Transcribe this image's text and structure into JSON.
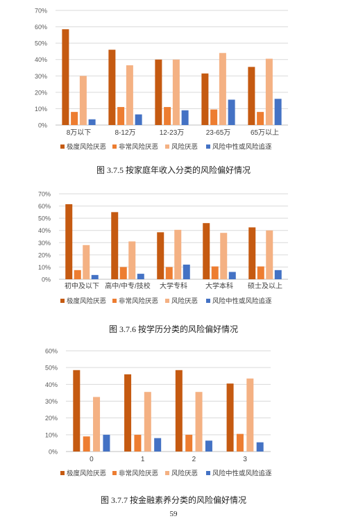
{
  "figures": [
    {
      "caption": "图 3.7.5  按家庭年收入分类的风险偏好情况",
      "chart_data": {
        "type": "bar",
        "categories": [
          "8万以下",
          "8-12万",
          "12-23万",
          "23-65万",
          "65万以上"
        ],
        "series": [
          {
            "name": "极度风险厌恶",
            "values": [
              58.5,
              46,
              40,
              31.5,
              35.5
            ]
          },
          {
            "name": "非常风险厌恶",
            "values": [
              8,
              11,
              11,
              9.5,
              8
            ]
          },
          {
            "name": "风险厌恶",
            "values": [
              30,
              36.5,
              40,
              44,
              40.5
            ]
          },
          {
            "name": "风险中性或风险追逐",
            "values": [
              3.5,
              6.5,
              9,
              15.5,
              16
            ]
          }
        ],
        "yticks": [
          "0%",
          "10%",
          "20%",
          "30%",
          "40%",
          "50%",
          "60%",
          "70%"
        ],
        "ylim": [
          0,
          70
        ],
        "grid": true,
        "legend_position": "bottom",
        "colors": [
          "#C55A11",
          "#ED7D31",
          "#F4B183",
          "#4472C4"
        ]
      }
    },
    {
      "caption": "图 3.7.6  按学历分类的风险偏好情况",
      "chart_data": {
        "type": "bar",
        "categories": [
          "初中及以下",
          "高中/中专/技校",
          "大学专科",
          "大学本科",
          "硕士及以上"
        ],
        "series": [
          {
            "name": "极度风险厌恶",
            "values": [
              61.5,
              55,
              38.5,
              46,
              42.5
            ]
          },
          {
            "name": "非常风险厌恶",
            "values": [
              7.5,
              10,
              10,
              10.5,
              10.5
            ]
          },
          {
            "name": "风险厌恶",
            "values": [
              28,
              31,
              40.5,
              38,
              40
            ]
          },
          {
            "name": "风险中性或风险追逐",
            "values": [
              3.5,
              4.5,
              12,
              6,
              7.5
            ]
          }
        ],
        "yticks": [
          "0%",
          "10%",
          "20%",
          "30%",
          "40%",
          "50%",
          "60%",
          "70%"
        ],
        "ylim": [
          0,
          70
        ],
        "grid": true,
        "legend_position": "bottom",
        "colors": [
          "#C55A11",
          "#ED7D31",
          "#F4B183",
          "#4472C4"
        ]
      }
    },
    {
      "caption": "图 3.7.7  按金融素养分类的风险偏好情况",
      "chart_data": {
        "type": "bar",
        "categories": [
          "0",
          "1",
          "2",
          "3"
        ],
        "series": [
          {
            "name": "极度风险厌恶",
            "values": [
              48.5,
              46,
              48.5,
              40.5
            ]
          },
          {
            "name": "非常风险厌恶",
            "values": [
              9,
              10,
              10,
              10.5
            ]
          },
          {
            "name": "风险厌恶",
            "values": [
              32.5,
              35.5,
              35.5,
              43.5
            ]
          },
          {
            "name": "风险中性或风险追逐",
            "values": [
              10,
              8,
              6.5,
              5.5
            ]
          }
        ],
        "yticks": [
          "0%",
          "10%",
          "20%",
          "30%",
          "40%",
          "50%",
          "60%"
        ],
        "ylim": [
          0,
          60
        ],
        "grid": true,
        "legend_position": "bottom",
        "colors": [
          "#C55A11",
          "#ED7D31",
          "#F4B183",
          "#4472C4"
        ]
      }
    }
  ],
  "page_number": "59"
}
